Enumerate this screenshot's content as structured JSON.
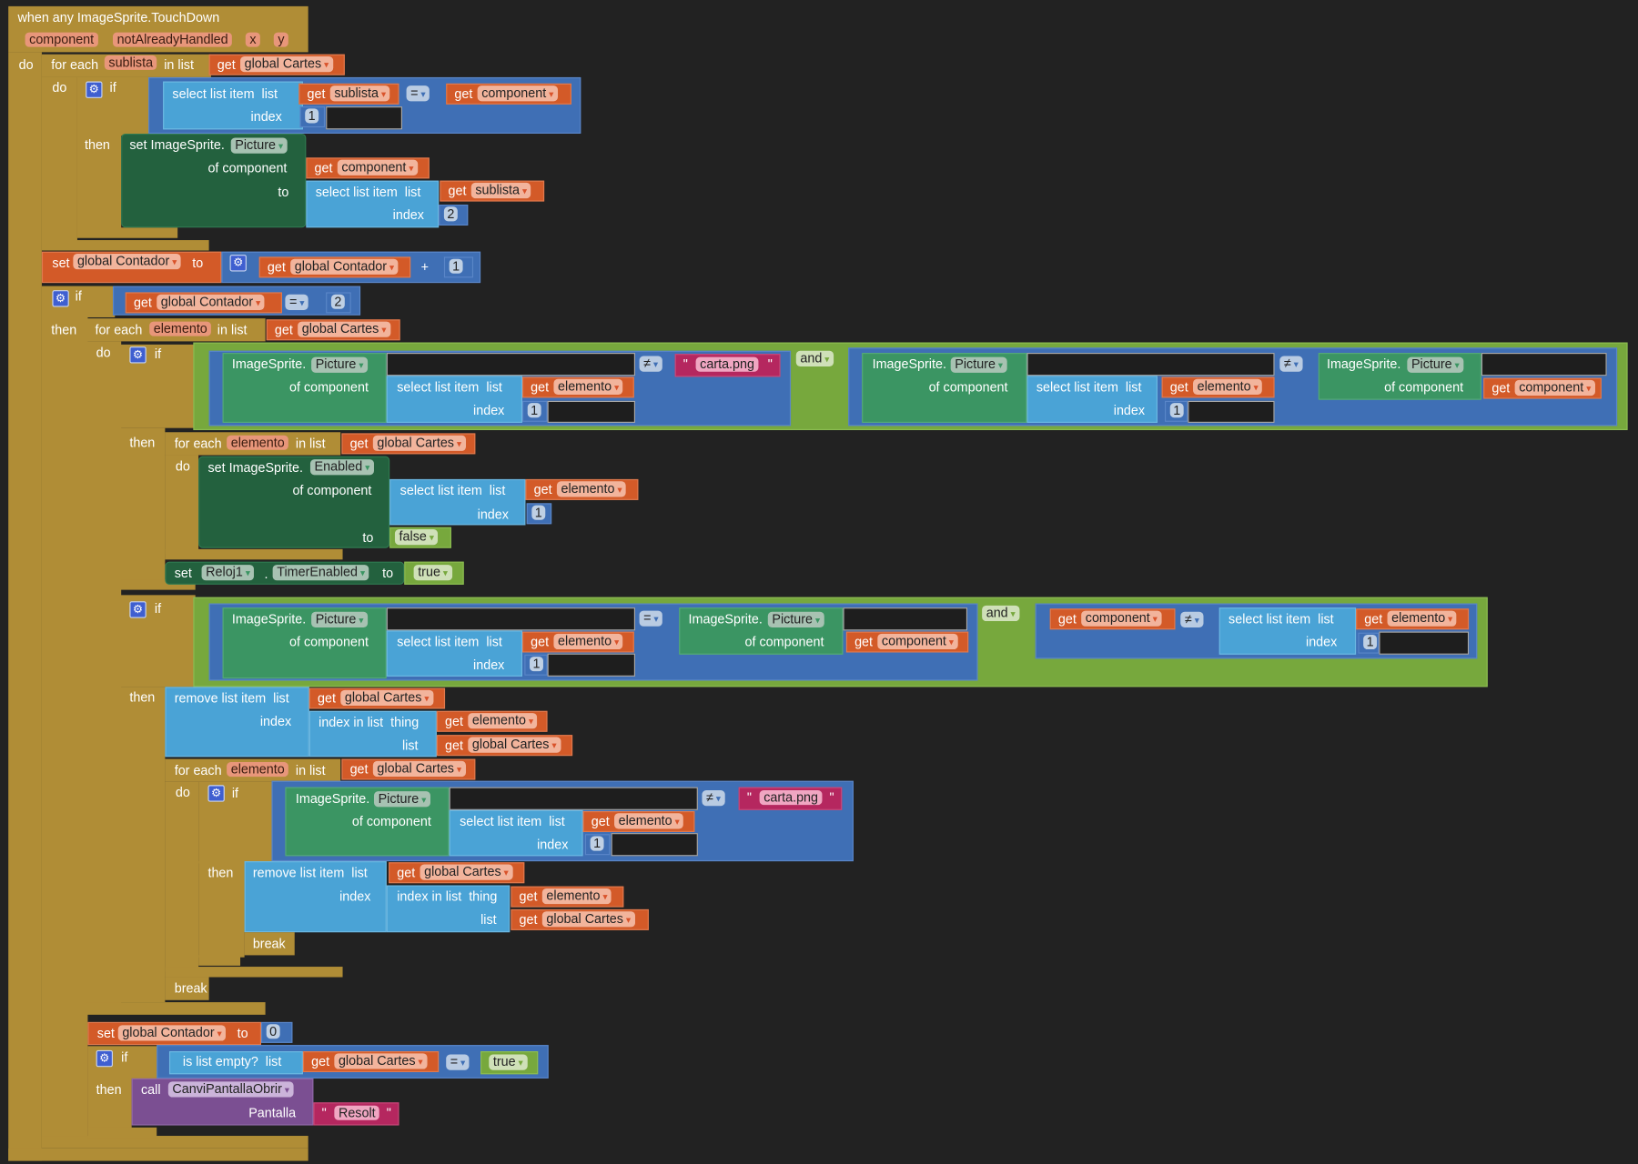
{
  "event": {
    "title": "when any ImageSprite.TouchDown",
    "params": [
      "component",
      "notAlreadyHandled",
      "x",
      "y"
    ]
  },
  "kw": {
    "do": "do",
    "if": "if",
    "then": "then",
    "for_each": "for each",
    "in_list": "in list",
    "get": "get",
    "set": "set",
    "to": "to",
    "select_list_item": "select list item  list",
    "index": "index",
    "of_component": "of component",
    "image_sprite": "ImageSprite.",
    "set_image_sprite": "set ImageSprite.",
    "remove_list_item": "remove list item  list",
    "index_in_list": "index in list  thing",
    "list": "list",
    "break": "break",
    "is_list_empty": "is list empty?  list",
    "call": "call",
    "pantalla": "Pantalla",
    "dot": ".",
    "quote": "\""
  },
  "vars": {
    "sublista": "sublista",
    "elemento": "elemento",
    "global_cartes": "global Cartes",
    "global_contador": "global Contador",
    "component": "component"
  },
  "props": {
    "picture": "Picture",
    "enabled": "Enabled",
    "timer_enabled": "TimerEnabled",
    "reloj": "Reloj1"
  },
  "ops": {
    "eq": "=",
    "neq": "≠",
    "and": "and",
    "plus": "+"
  },
  "values": {
    "one": "1",
    "two": "2",
    "zero": "0",
    "false": "false",
    "true": "true",
    "carta": "carta.png",
    "resolt": "Resolt"
  },
  "procedure": "CanviPantallaObrir",
  "colors": {
    "background": "#222222",
    "control": "#b08d36",
    "variable": "#d35a28",
    "logic_compare": "#3f6fb5",
    "list": "#4aa3d6",
    "component_setter": "#23613e",
    "component_getter": "#3b9563",
    "logic": "#77a83d",
    "text": "#b5275f",
    "procedure": "#7b4f92"
  }
}
